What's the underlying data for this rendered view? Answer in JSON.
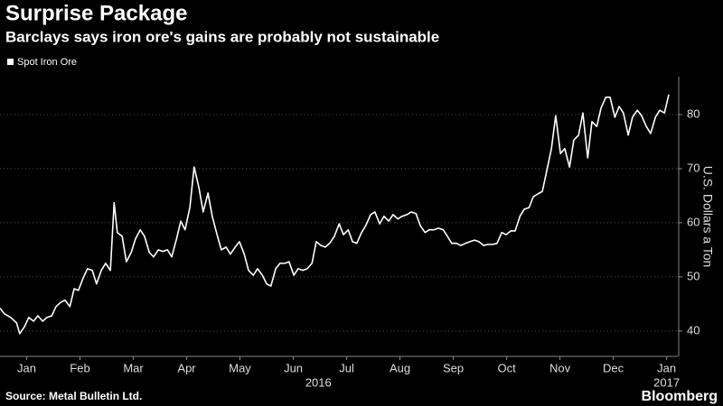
{
  "chart_data": {
    "type": "line",
    "title": "Surprise Package",
    "subtitle": "Barclays says iron ore's gains are probably not sustainable",
    "y_label": "U.S. Dollars a Ton",
    "source": "Source: Metal Bulletin Ltd.",
    "brand": "Bloomberg",
    "legend": "top-left",
    "grid": true,
    "xlim": [
      0,
      12.71
    ],
    "ylim": [
      35.3,
      87
    ],
    "yticks": [
      40,
      50,
      60,
      70,
      80
    ],
    "xticks": [
      {
        "value": 0.5,
        "label": "Jan"
      },
      {
        "value": 1.5,
        "label": "Feb"
      },
      {
        "value": 2.5,
        "label": "Mar"
      },
      {
        "value": 3.5,
        "label": "Apr"
      },
      {
        "value": 4.5,
        "label": "May"
      },
      {
        "value": 5.5,
        "label": "Jun"
      },
      {
        "value": 6.5,
        "label": "Jul"
      },
      {
        "value": 7.5,
        "label": "Aug"
      },
      {
        "value": 8.5,
        "label": "Sep"
      },
      {
        "value": 9.5,
        "label": "Oct"
      },
      {
        "value": 10.5,
        "label": "Nov"
      },
      {
        "value": 11.5,
        "label": "Dec"
      },
      {
        "value": 12.5,
        "label": "Jan"
      }
    ],
    "x_group_labels": [
      {
        "value": 5.97,
        "label": "2016"
      },
      {
        "value": 12.5,
        "label": "2017"
      }
    ],
    "x": [
      0,
      0.08,
      0.2,
      0.31,
      0.37,
      0.46,
      0.54,
      0.63,
      0.71,
      0.8,
      0.88,
      0.97,
      1.05,
      1.14,
      1.22,
      1.31,
      1.39,
      1.47,
      1.56,
      1.64,
      1.73,
      1.81,
      1.9,
      1.98,
      2.07,
      2.14,
      2.2,
      2.29,
      2.37,
      2.46,
      2.54,
      2.63,
      2.71,
      2.8,
      2.88,
      2.97,
      3.05,
      3.14,
      3.22,
      3.31,
      3.39,
      3.47,
      3.56,
      3.64,
      3.73,
      3.81,
      3.9,
      3.98,
      4.07,
      4.15,
      4.24,
      4.32,
      4.41,
      4.49,
      4.58,
      4.66,
      4.75,
      4.83,
      4.92,
      5,
      5.08,
      5.17,
      5.25,
      5.34,
      5.42,
      5.51,
      5.59,
      5.68,
      5.76,
      5.85,
      5.93,
      6.02,
      6.1,
      6.19,
      6.27,
      6.36,
      6.44,
      6.53,
      6.61,
      6.69,
      6.78,
      6.86,
      6.95,
      7.03,
      7.12,
      7.2,
      7.29,
      7.37,
      7.46,
      7.54,
      7.63,
      7.71,
      7.8,
      7.88,
      7.97,
      8.05,
      8.14,
      8.22,
      8.31,
      8.39,
      8.47,
      8.56,
      8.64,
      8.73,
      8.81,
      8.9,
      8.98,
      9.07,
      9.15,
      9.24,
      9.32,
      9.41,
      9.49,
      9.58,
      9.66,
      9.75,
      9.83,
      9.92,
      10,
      10.08,
      10.17,
      10.25,
      10.34,
      10.42,
      10.51,
      10.59,
      10.68,
      10.76,
      10.85,
      10.93,
      11.02,
      11.1,
      11.19,
      11.27,
      11.36,
      11.44,
      11.53,
      11.61,
      11.69,
      11.78,
      11.86,
      11.95,
      12.03,
      12.12,
      12.2,
      12.29,
      12.37,
      12.46,
      12.54
    ],
    "series": [
      {
        "name": "Spot Iron Ore",
        "color": "#ffffff",
        "values": [
          44.2,
          43.2,
          42.5,
          41.5,
          39.5,
          40.8,
          42.5,
          41.8,
          42.8,
          41.8,
          42.5,
          42.8,
          44.5,
          45.3,
          45.7,
          44.5,
          47.8,
          47.5,
          49.8,
          51.5,
          51.2,
          48.7,
          51.2,
          52.5,
          51.2,
          63.7,
          58.2,
          57.5,
          52.8,
          54.5,
          57,
          58.7,
          57.5,
          54.5,
          53.7,
          55,
          54.7,
          55,
          53.7,
          57,
          60.3,
          58.7,
          62.8,
          70.3,
          66.5,
          62,
          65.5,
          61.2,
          57.8,
          55,
          55.5,
          54.2,
          55.5,
          56.5,
          54.2,
          51.2,
          50.3,
          51.5,
          50.3,
          48.7,
          48.3,
          51.5,
          52.5,
          52.5,
          52.8,
          50.3,
          51.5,
          51.2,
          51.5,
          52.5,
          56.5,
          55.8,
          55.5,
          56.3,
          57.5,
          59.8,
          57.8,
          58.7,
          56.5,
          56.2,
          58.2,
          59.5,
          61.5,
          62,
          59.8,
          61.2,
          60.3,
          61.5,
          60.7,
          61.2,
          61.5,
          62,
          61.7,
          59.5,
          58.2,
          58.7,
          58.7,
          59,
          58.7,
          57.5,
          56.2,
          56.2,
          55.8,
          56.2,
          56.5,
          56.8,
          56.5,
          55.8,
          56,
          56,
          56.2,
          58.2,
          57.8,
          58.5,
          58.5,
          61.2,
          62.5,
          62.8,
          64.8,
          65.3,
          65.8,
          69.5,
          73.7,
          79.8,
          72.8,
          73.7,
          70.3,
          75.3,
          76.2,
          80.3,
          72,
          78.7,
          77.8,
          81.2,
          83.2,
          83.2,
          79.5,
          81.5,
          80.3,
          76.2,
          79.5,
          80.8,
          79.8,
          77.8,
          76.5,
          79.5,
          80.8,
          80.3,
          83.7
        ]
      }
    ]
  }
}
